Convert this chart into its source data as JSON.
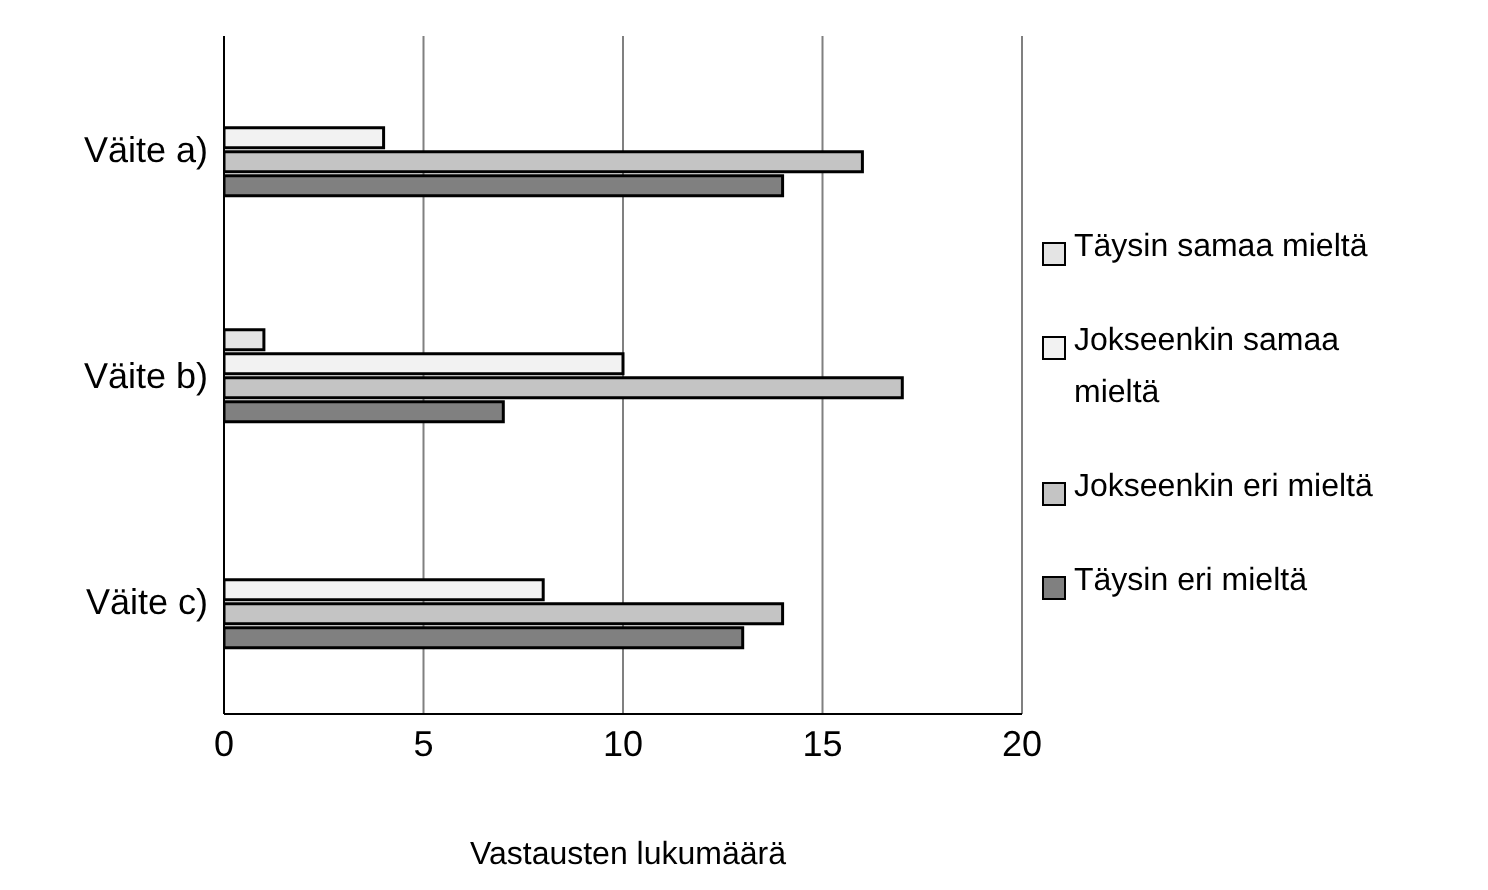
{
  "chart_data": {
    "type": "bar",
    "orientation": "horizontal",
    "xlabel": "Vastausten lukumäärä",
    "categories": [
      "Väite a)",
      "Väite b)",
      "Väite c)"
    ],
    "series": [
      {
        "name": "Täysin samaa mieltä",
        "color": "#e4e4e4",
        "values": [
          0,
          1,
          0
        ]
      },
      {
        "name": "Jokseenkin samaa mieltä",
        "color": "#f2f2f2",
        "values": [
          4,
          10,
          8
        ]
      },
      {
        "name": "Jokseenkin eri mieltä",
        "color": "#c4c4c4",
        "values": [
          16,
          17,
          14
        ]
      },
      {
        "name": "Täysin eri mieltä",
        "color": "#808080",
        "values": [
          14,
          7,
          13
        ]
      }
    ],
    "xlim": [
      0,
      20
    ],
    "xticks": [
      0,
      5,
      10,
      15,
      20
    ],
    "grid": "x",
    "legend": "right"
  }
}
